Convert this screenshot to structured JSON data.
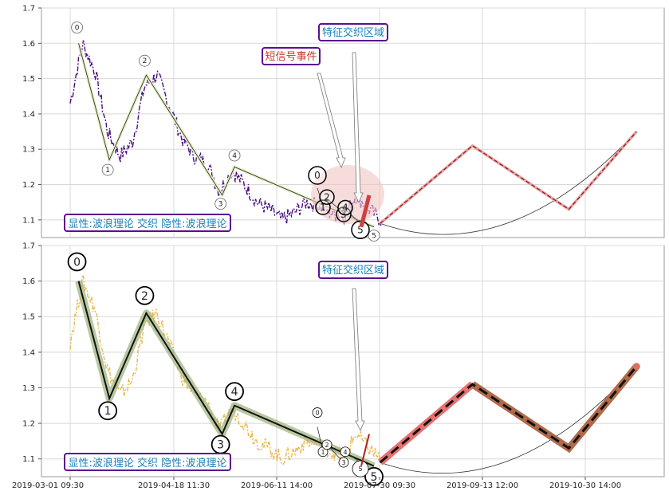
{
  "chart_data": [
    {
      "type": "line",
      "panel": "top",
      "title": "",
      "ylim": [
        1.05,
        1.7
      ],
      "yticks": [
        "1.1",
        "1.2",
        "1.3",
        "1.4",
        "1.5",
        "1.6",
        "1.7"
      ],
      "grid": true,
      "colors": {
        "price": "#4b0e82",
        "wave": "#2a3a1a",
        "forecast": "#e8a0a0",
        "forecast_dash": "#8b1a1a",
        "box_border": "#5a0f8f",
        "box_text_info": "#1a7fb8",
        "box_text_event": "#c0392b"
      },
      "series": [
        {
          "values": [
            1.43,
            1.6,
            1.52,
            1.35,
            1.28,
            1.32,
            1.48,
            1.51,
            1.42,
            1.33,
            1.28,
            1.26,
            1.18,
            1.24,
            1.2,
            1.15,
            1.13,
            1.1,
            1.12,
            1.15,
            1.14,
            1.12,
            1.11,
            1.17,
            1.13,
            1.1
          ]
        }
      ],
      "wave_points": [
        {
          "label": "0",
          "x": "2019-03-05",
          "y": 1.6
        },
        {
          "label": "1",
          "x": "2019-03-20",
          "y": 1.27
        },
        {
          "label": "2",
          "x": "2019-04-07",
          "y": 1.51
        },
        {
          "label": "3",
          "x": "2019-05-14",
          "y": 1.17
        },
        {
          "label": "4",
          "x": "2019-05-20",
          "y": 1.25
        },
        {
          "label": "5",
          "x": "2019-07-27",
          "y": 1.08
        }
      ],
      "small_waves": [
        {
          "label": "0",
          "y": 1.19
        },
        {
          "label": "1",
          "y": 1.14
        },
        {
          "label": "2",
          "y": 1.16
        },
        {
          "label": "3",
          "y": 1.12
        },
        {
          "label": "4",
          "y": 1.13
        },
        {
          "label": "5",
          "y": 1.09
        }
      ],
      "forecast": [
        {
          "x": "2019-07-30",
          "y": 1.09
        },
        {
          "x": "2019-09-13",
          "y": 1.31
        },
        {
          "x": "2019-10-30",
          "y": 1.13
        },
        {
          "x": "2019-12-02",
          "y": 1.35
        }
      ],
      "annotations": [
        "特征交织区域",
        "短信号事件"
      ],
      "footer": "显性:波浪理论 交织 隐性:波浪理论"
    },
    {
      "type": "line",
      "panel": "bottom",
      "title": "",
      "ylim": [
        1.05,
        1.7
      ],
      "yticks": [
        "1.1",
        "1.2",
        "1.3",
        "1.4",
        "1.5",
        "1.6",
        "1.7"
      ],
      "xticks": [
        "2019-03-01 09:30",
        "2019-04-18 11:30",
        "2019-06-11 14:00",
        "2019-07-30 09:30",
        "2019-09-13 12:00",
        "2019-10-30 14:00"
      ],
      "grid": true,
      "colors": {
        "price": "#e8b84a",
        "wave": "#111111",
        "wave_halo": "#9bb07a",
        "forecast": "#e87070",
        "forecast_end": "#b06a4a",
        "box_border": "#5a0f8f",
        "box_text_info": "#1a7fb8"
      },
      "series": [
        {
          "values": [
            1.43,
            1.6,
            1.52,
            1.35,
            1.28,
            1.32,
            1.48,
            1.51,
            1.42,
            1.33,
            1.28,
            1.26,
            1.18,
            1.24,
            1.2,
            1.15,
            1.13,
            1.1,
            1.12,
            1.15,
            1.14,
            1.12,
            1.11,
            1.17,
            1.13,
            1.1
          ]
        }
      ],
      "wave_points": [
        {
          "label": "0",
          "x": "2019-03-05",
          "y": 1.6
        },
        {
          "label": "1",
          "x": "2019-03-20",
          "y": 1.27
        },
        {
          "label": "2",
          "x": "2019-04-07",
          "y": 1.51
        },
        {
          "label": "3",
          "x": "2019-05-14",
          "y": 1.17
        },
        {
          "label": "4",
          "x": "2019-05-20",
          "y": 1.25
        },
        {
          "label": "5",
          "x": "2019-07-27",
          "y": 1.08
        }
      ],
      "small_waves": [
        {
          "label": "0",
          "y": 1.19
        },
        {
          "label": "1",
          "y": 1.12
        },
        {
          "label": "2",
          "y": 1.14
        },
        {
          "label": "3",
          "y": 1.09
        },
        {
          "label": "4",
          "y": 1.12
        },
        {
          "label": "5",
          "y": 1.09
        }
      ],
      "forecast": [
        {
          "x": "2019-07-30",
          "y": 1.09
        },
        {
          "x": "2019-09-13",
          "y": 1.31
        },
        {
          "x": "2019-10-30",
          "y": 1.13
        },
        {
          "x": "2019-12-02",
          "y": 1.36
        }
      ],
      "annotations": [
        "特征交织区域"
      ],
      "footer": "显性:波浪理论 交织 隐性:波浪理论"
    }
  ]
}
